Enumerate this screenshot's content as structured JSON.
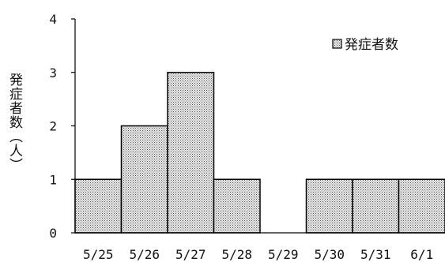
{
  "chart_data": {
    "type": "bar",
    "categories": [
      "5/25",
      "5/26",
      "5/27",
      "5/28",
      "5/29",
      "5/30",
      "5/31",
      "6/1"
    ],
    "series": [
      {
        "name": "発症者数",
        "values": [
          1,
          2,
          3,
          1,
          0,
          1,
          1,
          1
        ]
      }
    ],
    "xlabel": "",
    "ylabel": "発症者数（人）",
    "ylim": [
      0,
      4
    ],
    "yticks": [
      "0",
      "1",
      "2",
      "3",
      "4"
    ],
    "grid": false,
    "legend_position": "top-right",
    "bar_pattern": "dotted",
    "colors": {
      "bar_fill": "#e8e8e8",
      "bar_dots": "#555555",
      "bar_edge": "#000000",
      "axis": "#000000"
    }
  }
}
